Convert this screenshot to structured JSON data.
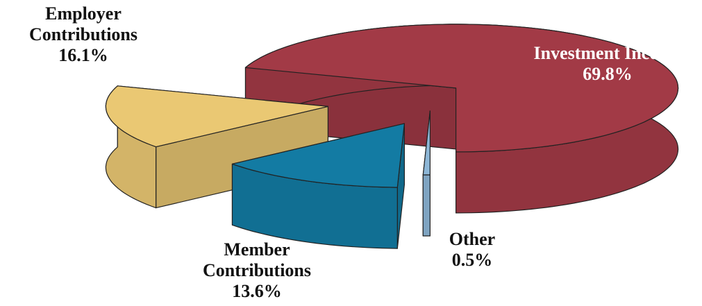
{
  "chart_data": {
    "type": "pie3d",
    "categories": [
      "Investment Income",
      "Employer Contributions",
      "Member Contributions",
      "Other"
    ],
    "values": [
      69.8,
      16.1,
      13.6,
      0.5
    ],
    "value_labels": [
      "69.8%",
      "16.1%",
      "13.6%",
      "0.5%"
    ],
    "colors": [
      "#a23a46",
      "#eac873",
      "#137ba3",
      "#8db6d6"
    ]
  }
}
